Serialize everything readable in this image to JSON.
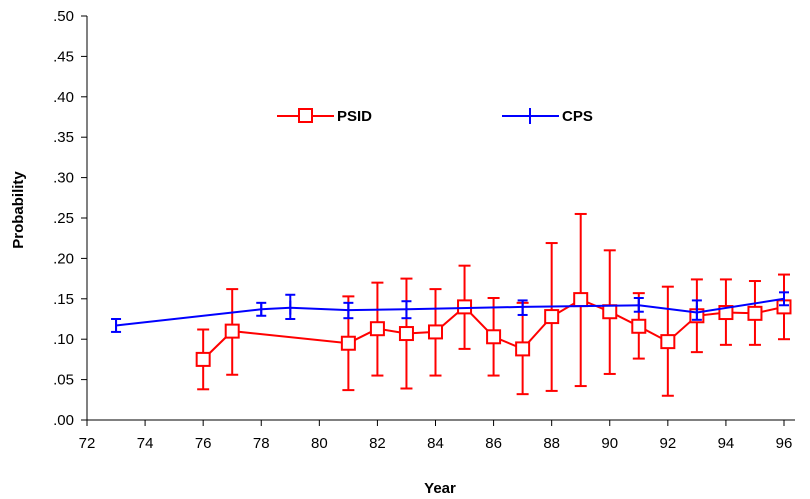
{
  "chart_data": {
    "type": "line",
    "xlabel": "Year",
    "ylabel": "Probability",
    "xlim": [
      72,
      97
    ],
    "ylim": [
      0,
      0.5
    ],
    "x_ticks": [
      72,
      74,
      76,
      78,
      80,
      82,
      84,
      86,
      88,
      90,
      92,
      94,
      96
    ],
    "y_ticks": [
      0,
      0.05,
      0.1,
      0.15,
      0.2,
      0.25,
      0.3,
      0.35,
      0.4,
      0.45,
      0.5
    ],
    "y_tick_labels": [
      ".00",
      ".05",
      ".10",
      ".15",
      ".20",
      ".25",
      ".30",
      ".35",
      ".40",
      ".45",
      ".50"
    ],
    "grid": false,
    "legend_position": "top",
    "series": [
      {
        "name": "PSID",
        "color": "#ff0000",
        "marker": "square",
        "x": [
          76,
          77,
          81,
          82,
          83,
          84,
          85,
          86,
          87,
          88,
          89,
          90,
          91,
          92,
          93,
          94,
          95,
          96
        ],
        "y": [
          0.075,
          0.11,
          0.095,
          0.113,
          0.107,
          0.109,
          0.14,
          0.103,
          0.088,
          0.128,
          0.149,
          0.134,
          0.116,
          0.097,
          0.129,
          0.133,
          0.132,
          0.14
        ],
        "lower": [
          0.038,
          0.056,
          0.037,
          0.055,
          0.039,
          0.055,
          0.088,
          0.055,
          0.032,
          0.036,
          0.042,
          0.057,
          0.076,
          0.03,
          0.084,
          0.093,
          0.093,
          0.1
        ],
        "upper": [
          0.112,
          0.162,
          0.153,
          0.17,
          0.175,
          0.162,
          0.191,
          0.151,
          0.145,
          0.219,
          0.255,
          0.21,
          0.157,
          0.165,
          0.174,
          0.174,
          0.172,
          0.18
        ]
      },
      {
        "name": "CPS",
        "color": "#0000ff",
        "marker": "bar",
        "x": [
          73,
          78,
          79,
          81,
          83,
          87,
          91,
          93,
          96
        ],
        "y": [
          0.117,
          0.137,
          0.139,
          0.136,
          0.137,
          0.14,
          0.142,
          0.133,
          0.15
        ],
        "lower": [
          0.109,
          0.129,
          0.125,
          0.126,
          0.126,
          0.13,
          0.134,
          0.124,
          0.142
        ],
        "upper": [
          0.125,
          0.145,
          0.155,
          0.145,
          0.147,
          0.148,
          0.151,
          0.148,
          0.158
        ]
      }
    ]
  }
}
